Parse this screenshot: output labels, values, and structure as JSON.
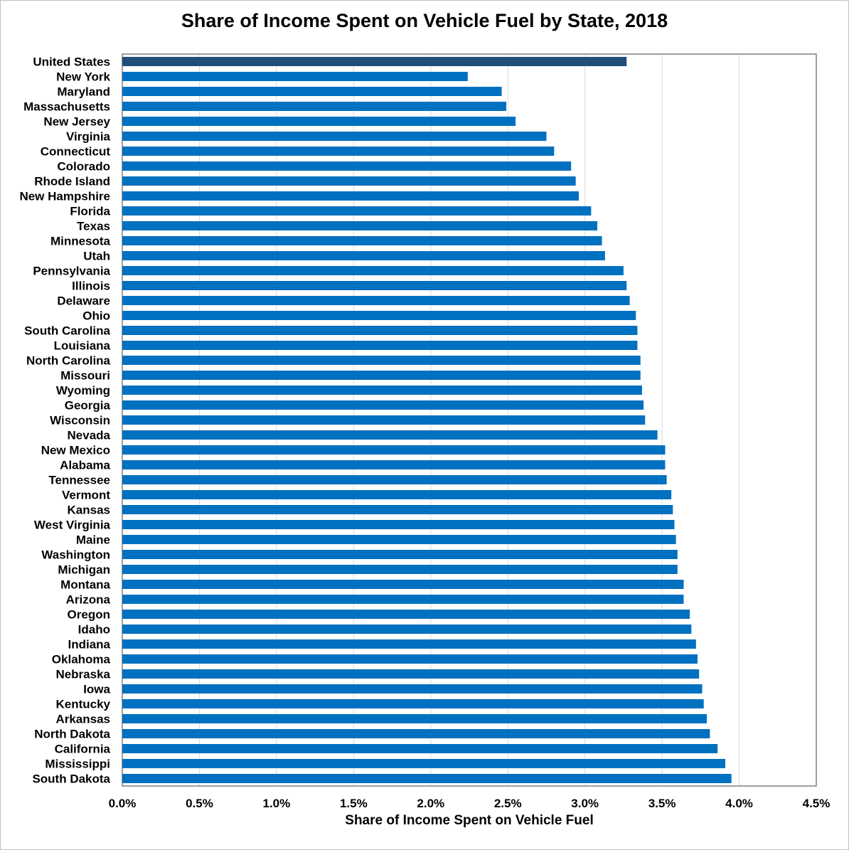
{
  "chart_data": {
    "type": "bar",
    "orientation": "horizontal",
    "title": "Share of Income Spent on Vehicle Fuel by State, 2018",
    "xlabel": "Share of Income Spent on Vehicle Fuel",
    "ylabel": "",
    "xlim": [
      0,
      4.5
    ],
    "x_ticks": [
      "0.0%",
      "0.5%",
      "1.0%",
      "1.5%",
      "2.0%",
      "2.5%",
      "3.0%",
      "3.5%",
      "4.0%",
      "4.5%"
    ],
    "grid": "vertical",
    "highlight_color": "#1f4e79",
    "bar_color": "#0070c0",
    "categories": [
      "United States",
      "New York",
      "Maryland",
      "Massachusetts",
      "New Jersey",
      "Virginia",
      "Connecticut",
      "Colorado",
      "Rhode Island",
      "New Hampshire",
      "Florida",
      "Texas",
      "Minnesota",
      "Utah",
      "Pennsylvania",
      "Illinois",
      "Delaware",
      "Ohio",
      "South Carolina",
      "Louisiana",
      "North Carolina",
      "Missouri",
      "Wyoming",
      "Georgia",
      "Wisconsin",
      "Nevada",
      "New Mexico",
      "Alabama",
      "Tennessee",
      "Vermont",
      "Kansas",
      "West Virginia",
      "Maine",
      "Washington",
      "Michigan",
      "Montana",
      "Arizona",
      "Oregon",
      "Idaho",
      "Indiana",
      "Oklahoma",
      "Nebraska",
      "Iowa",
      "Kentucky",
      "Arkansas",
      "North Dakota",
      "California",
      "Mississippi",
      "South Dakota"
    ],
    "values": [
      3.27,
      2.24,
      2.46,
      2.49,
      2.55,
      2.75,
      2.8,
      2.91,
      2.94,
      2.96,
      3.04,
      3.08,
      3.11,
      3.13,
      3.25,
      3.27,
      3.29,
      3.33,
      3.34,
      3.34,
      3.36,
      3.36,
      3.37,
      3.38,
      3.39,
      3.47,
      3.52,
      3.52,
      3.53,
      3.56,
      3.57,
      3.58,
      3.59,
      3.6,
      3.6,
      3.64,
      3.64,
      3.68,
      3.69,
      3.72,
      3.73,
      3.74,
      3.76,
      3.77,
      3.79,
      3.81,
      3.86,
      3.91,
      3.95
    ]
  }
}
